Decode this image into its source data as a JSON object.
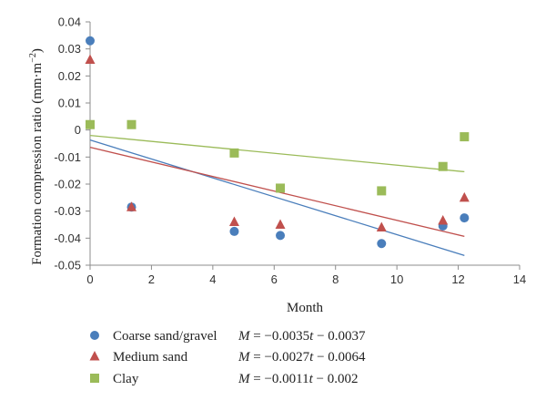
{
  "chart_data": {
    "type": "scatter",
    "xlabel": "Month",
    "ylabel": "Formation compression ratio (mm·m",
    "ylabel_sup": "−2",
    "ylabel_close": ")",
    "xlim": [
      0,
      14
    ],
    "ylim": [
      -0.05,
      0.04
    ],
    "x_ticks": [
      0,
      2,
      4,
      6,
      8,
      10,
      12,
      14
    ],
    "y_ticks": [
      0.04,
      0.03,
      0.02,
      0.01,
      0,
      -0.01,
      -0.02,
      -0.03,
      -0.04,
      -0.05
    ],
    "y_tick_labels": [
      "0.04",
      "0.03",
      "0.02",
      "0.01",
      "0",
      "-0.01",
      "-0.02",
      "-0.03",
      "-0.04",
      "-0.05"
    ],
    "grid": false,
    "legend_position": "bottom",
    "series": [
      {
        "name": "Coarse sand/gravel",
        "marker": "circle",
        "color": "#4a7ebb",
        "x": [
          0,
          1.35,
          4.7,
          6.2,
          9.5,
          11.5,
          12.2
        ],
        "y": [
          0.033,
          -0.0285,
          -0.0375,
          -0.039,
          -0.042,
          -0.0355,
          -0.0325
        ],
        "fit": {
          "slope": -0.0035,
          "intercept": -0.0037,
          "x_range": [
            0,
            12.2
          ]
        },
        "equation": {
          "M": "M",
          "eq": " = −0.0035",
          "t": "t",
          "rest": " − 0.0037"
        }
      },
      {
        "name": "Medium sand",
        "marker": "triangle",
        "color": "#c0504d",
        "x": [
          0,
          1.35,
          4.7,
          6.2,
          9.5,
          11.5,
          12.2
        ],
        "y": [
          0.026,
          -0.0285,
          -0.034,
          -0.035,
          -0.036,
          -0.0335,
          -0.025
        ],
        "fit": {
          "slope": -0.0027,
          "intercept": -0.0064,
          "x_range": [
            0,
            12.2
          ]
        },
        "equation": {
          "M": "M",
          "eq": " = −0.0027",
          "t": "t",
          "rest": " − 0.0064"
        }
      },
      {
        "name": "Clay",
        "marker": "square",
        "color": "#9bbb59",
        "x": [
          0,
          1.35,
          4.7,
          6.2,
          9.5,
          11.5,
          12.2
        ],
        "y": [
          0.002,
          0.002,
          -0.0085,
          -0.0215,
          -0.0225,
          -0.0135,
          -0.0025
        ],
        "fit": {
          "slope": -0.0011,
          "intercept": -0.002,
          "x_range": [
            0,
            12.2
          ]
        },
        "equation": {
          "M": "M",
          "eq": " = −0.0011",
          "t": "t",
          "rest": " − 0.002"
        }
      }
    ]
  }
}
